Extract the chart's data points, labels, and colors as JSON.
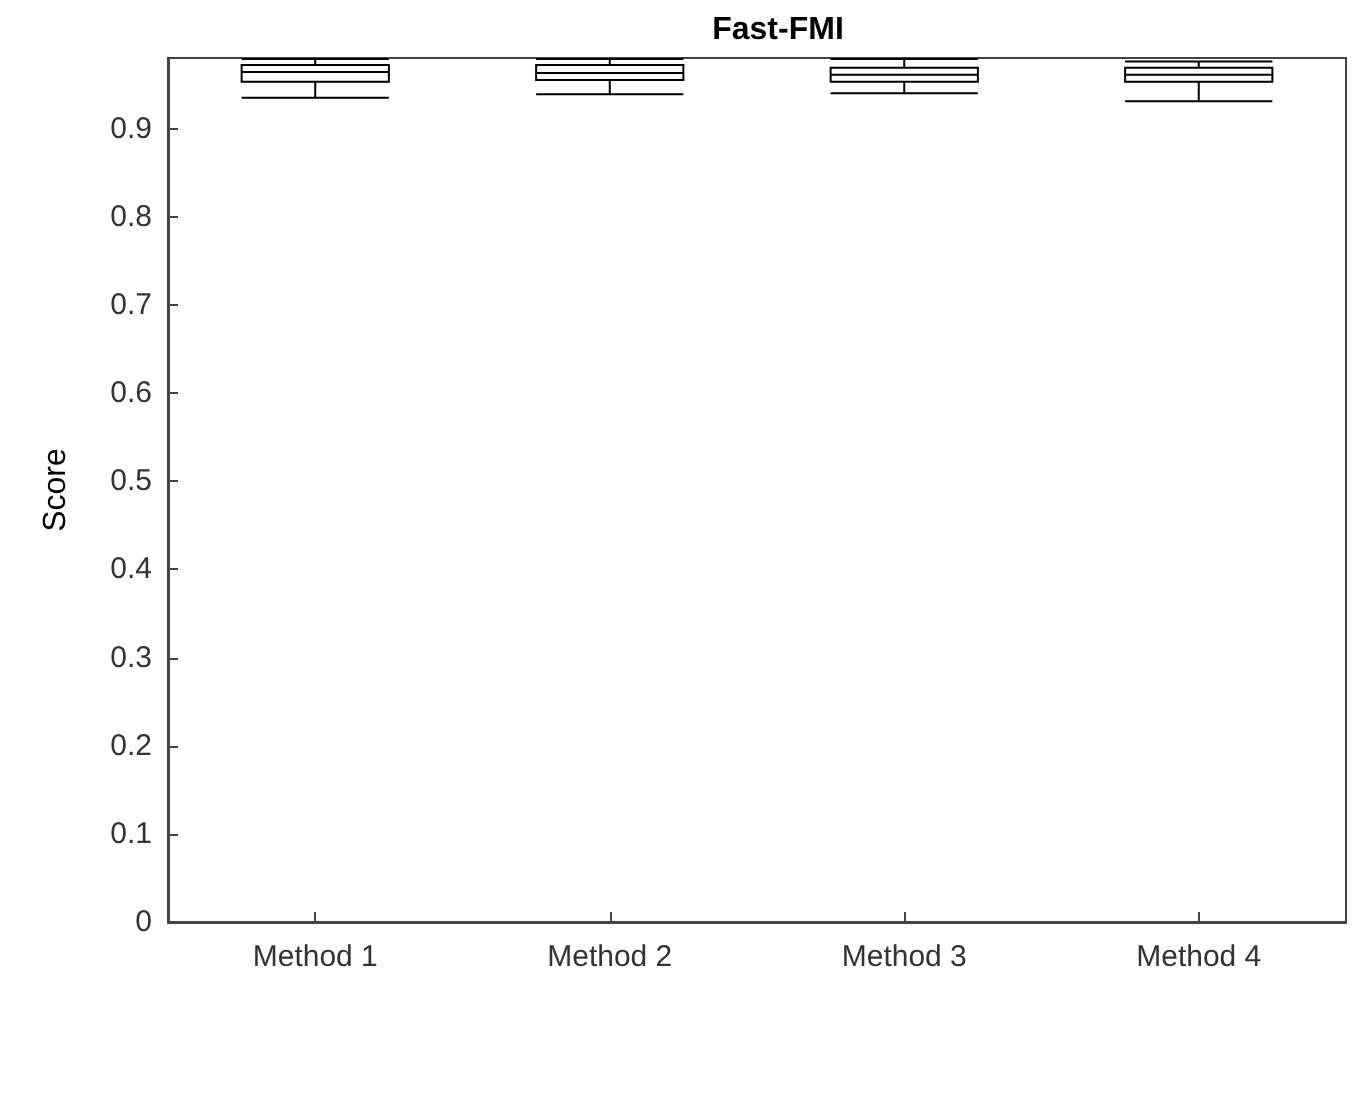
{
  "chart_data": {
    "type": "box",
    "title": "Fast-FMI",
    "ylabel": "Score",
    "categories": [
      "Method 1",
      "Method 2",
      "Method 3",
      "Method 4"
    ],
    "boxes": [
      {
        "low": 0.935,
        "q1": 0.953,
        "median": 0.964,
        "q3": 0.972,
        "high": 0.979
      },
      {
        "low": 0.939,
        "q1": 0.955,
        "median": 0.963,
        "q3": 0.972,
        "high": 0.979
      },
      {
        "low": 0.94,
        "q1": 0.953,
        "median": 0.961,
        "q3": 0.969,
        "high": 0.979
      },
      {
        "low": 0.931,
        "q1": 0.953,
        "median": 0.961,
        "q3": 0.969,
        "high": 0.976
      }
    ],
    "color": "#000000",
    "ylim": [
      0,
      0.98
    ],
    "yticks": [
      0,
      0.1,
      0.2,
      0.3,
      0.4,
      0.5,
      0.6,
      0.7,
      0.8,
      0.9
    ],
    "grid": false
  }
}
